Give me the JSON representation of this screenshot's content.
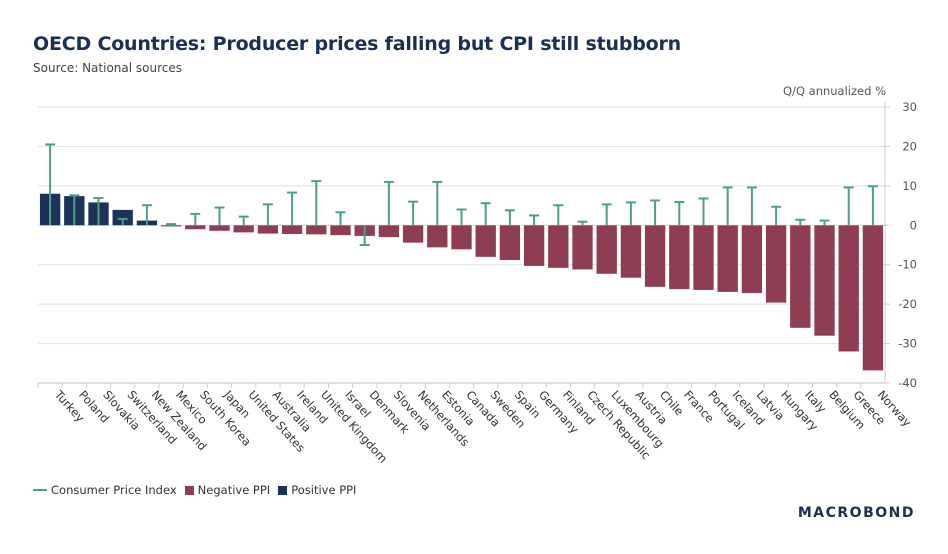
{
  "chart_data": {
    "type": "bar",
    "title": "OECD Countries: Producer prices falling but CPI still stubborn",
    "subtitle": "Source: National sources",
    "ylabel": "Q/Q annualized %",
    "ylim": [
      -40,
      30
    ],
    "yticks": [
      30,
      20,
      10,
      0,
      -10,
      -20,
      -30,
      -40
    ],
    "grid": true,
    "legend_position": "bottom-left",
    "categories": [
      "Turkey",
      "Poland",
      "Slovakia",
      "Switzerland",
      "New Zealand",
      "Mexico",
      "South Korea",
      "Japan",
      "United States",
      "Australia",
      "Ireland",
      "United Kingdom",
      "Israel",
      "Denmark",
      "Slovenia",
      "Netherlands",
      "Estonia",
      "Canada",
      "Sweden",
      "Spain",
      "Germany",
      "Finland",
      "Czech Republic",
      "Luxembourg",
      "Austria",
      "Chile",
      "France",
      "Portugal",
      "Iceland",
      "Latvia",
      "Hungary",
      "Italy",
      "Belgium",
      "Greece",
      "Norway"
    ],
    "series": [
      {
        "name": "Consumer Price Index",
        "kind": "marker-line",
        "color": "#4e9e86",
        "values": [
          20.5,
          7.6,
          6.9,
          1.6,
          5.1,
          0.3,
          2.9,
          4.5,
          2.2,
          5.3,
          8.3,
          11.2,
          3.3,
          -5.0,
          11.0,
          6.0,
          11.0,
          4.0,
          5.6,
          3.8,
          2.5,
          5.1,
          0.9,
          5.3,
          5.8,
          6.3,
          5.9,
          6.8,
          9.6,
          9.6,
          4.7,
          1.4,
          1.2,
          9.6,
          9.9
        ]
      },
      {
        "name": "PPI",
        "kind": "bar",
        "values": [
          8.0,
          7.4,
          5.8,
          3.9,
          1.2,
          -0.3,
          -1.0,
          -1.4,
          -1.8,
          -2.1,
          -2.2,
          -2.3,
          -2.5,
          -2.7,
          -3.0,
          -4.4,
          -5.6,
          -6.1,
          -8.0,
          -8.8,
          -10.3,
          -10.8,
          -11.2,
          -12.3,
          -13.3,
          -15.6,
          -16.2,
          -16.4,
          -16.9,
          -17.2,
          -19.6,
          -26.0,
          -28.0,
          -32.0,
          -36.8
        ]
      }
    ],
    "legend": [
      {
        "label": "Consumer Price Index",
        "color": "#4e9e86",
        "shape": "line"
      },
      {
        "label": "Negative PPI",
        "color": "#8f3d52",
        "shape": "box"
      },
      {
        "label": "Positive PPI",
        "color": "#1b3358",
        "shape": "box"
      }
    ]
  },
  "branding": {
    "logo": "MACROBOND"
  }
}
